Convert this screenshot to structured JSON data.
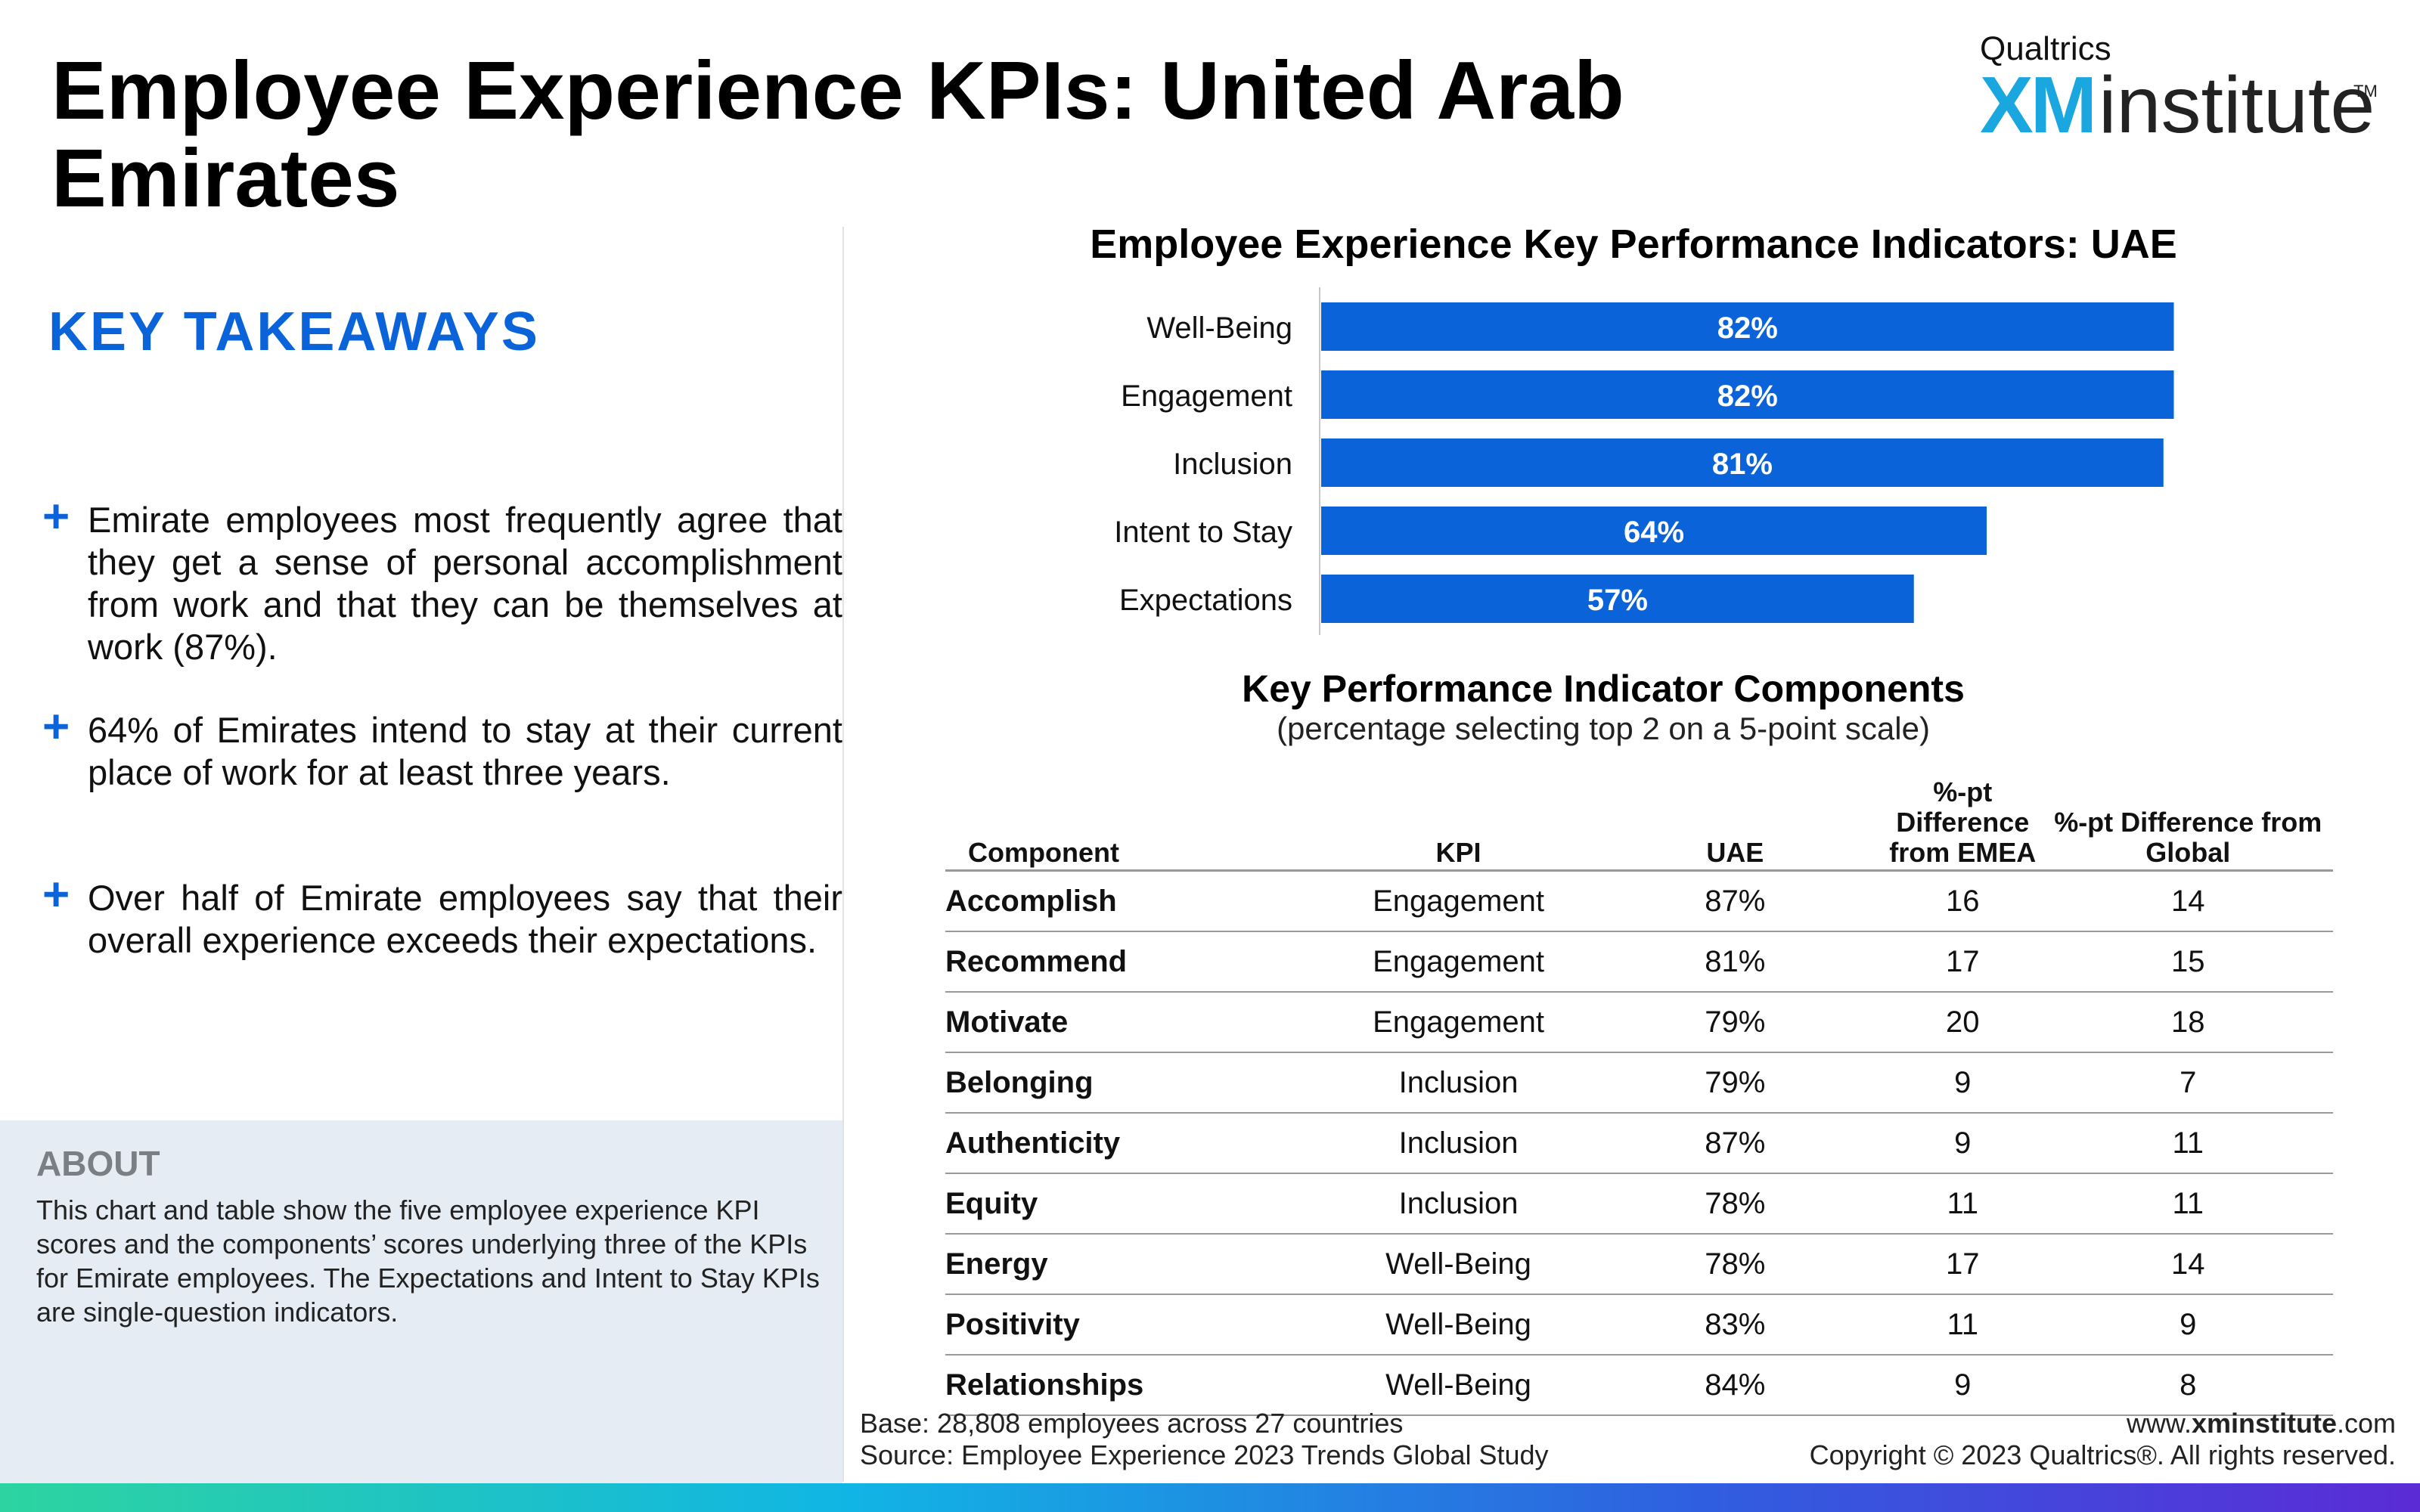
{
  "page": {
    "title": "Employee Experience KPIs: United Arab Emirates"
  },
  "logo": {
    "brand": "Qualtrics",
    "xm": "XM",
    "institute": "institute",
    "tm": "TM"
  },
  "takeaways": {
    "heading": "KEY TAKEAWAYS",
    "items": [
      "Emirate employees most frequently agree that they get a sense of personal accomplishment from work and that they can be themselves at work (87%).",
      "64% of Emirates intend to stay at their current place of work for at least three years.",
      "Over half of Emirate employees say that their overall experience exceeds their expectations."
    ]
  },
  "about": {
    "heading": "ABOUT",
    "text": "This chart and table show the five employee experience KPI scores and the components’ scores underlying three of the KPIs for Emirate employees. The Expectations and Intent to Stay KPIs are single-question indicators."
  },
  "chart_data": {
    "type": "bar",
    "orientation": "horizontal",
    "title": "Employee Experience Key Performance Indicators: UAE",
    "categories": [
      "Well-Being",
      "Engagement",
      "Inclusion",
      "Intent to Stay",
      "Expectations"
    ],
    "values": [
      82,
      82,
      81,
      64,
      57
    ],
    "value_labels": [
      "82%",
      "82%",
      "81%",
      "64%",
      "57%"
    ],
    "xlim": [
      0,
      100
    ],
    "grid": false,
    "bar_color": "#0b63d9"
  },
  "table": {
    "title": "Key Performance Indicator Components",
    "subtitle": "(percentage selecting top 2 on a 5-point scale)",
    "headers": [
      "Component",
      "KPI",
      "UAE",
      "%-pt Difference from EMEA",
      "%-pt Difference from Global"
    ],
    "rows": [
      [
        "Accomplish",
        "Engagement",
        "87%",
        "16",
        "14"
      ],
      [
        "Recommend",
        "Engagement",
        "81%",
        "17",
        "15"
      ],
      [
        "Motivate",
        "Engagement",
        "79%",
        "20",
        "18"
      ],
      [
        "Belonging",
        "Inclusion",
        "79%",
        "9",
        "7"
      ],
      [
        "Authenticity",
        "Inclusion",
        "87%",
        "9",
        "11"
      ],
      [
        "Equity",
        "Inclusion",
        "78%",
        "11",
        "11"
      ],
      [
        "Energy",
        "Well-Being",
        "78%",
        "17",
        "14"
      ],
      [
        "Positivity",
        "Well-Being",
        "83%",
        "11",
        "9"
      ],
      [
        "Relationships",
        "Well-Being",
        "84%",
        "9",
        "8"
      ]
    ]
  },
  "footer": {
    "base": "Base: 28,808 employees across 27 countries",
    "source": "Source: Employee Experience 2023 Trends Global Study",
    "site_prefix": "www.",
    "site_bold": "xminstitute",
    "site_suffix": ".com",
    "copyright": "Copyright © 2023 Qualtrics®. All rights reserved."
  },
  "colors": {
    "accent": "#0b63d9",
    "about_bg": "#e6ecf3"
  }
}
